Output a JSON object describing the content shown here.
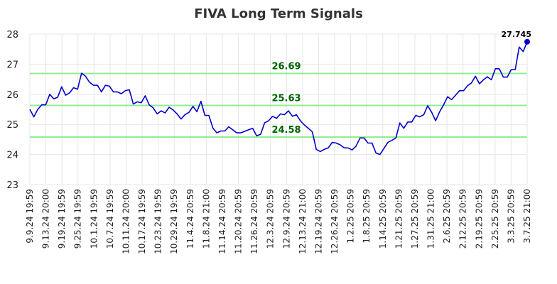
{
  "chart_data": {
    "type": "line",
    "title": "FIVA Long Term Signals",
    "xlabel": "",
    "ylabel": "",
    "ylim": [
      23,
      28
    ],
    "yticks": [
      "23",
      "24",
      "25",
      "26",
      "27",
      "28"
    ],
    "xticks": [
      "9.9.24 19:59",
      "9.13.24 20:00",
      "9.19.24 19:59",
      "9.25.24 19:59",
      "10.1.24 19:59",
      "10.7.24 19:59",
      "10.11.24 20:00",
      "10.17.24 19:59",
      "10.23.24 19:59",
      "10.29.24 19:59",
      "11.4.24 20:59",
      "11.8.24 21:00",
      "11.14.24 20:59",
      "11.20.24 20:59",
      "11.26.24 20:59",
      "12.3.24 20:59",
      "12.9.24 20:59",
      "12.13.24 21:00",
      "12.19.24 20:59",
      "12.26.24 20:59",
      "1.2.25 20:59",
      "1.8.25 20:59",
      "1.14.25 20:59",
      "1.21.25 20:59",
      "1.27.25 20:59",
      "1.31.25 21:00",
      "2.6.25 20:59",
      "2.12.25 20:59",
      "2.19.25 20:59",
      "2.25.25 20:59",
      "3.3.25 20:59",
      "3.7.25 21:00"
    ],
    "grid": true,
    "levels": [
      {
        "value": 26.69,
        "label": "26.69"
      },
      {
        "value": 25.63,
        "label": "25.63"
      },
      {
        "value": 24.58,
        "label": "24.58"
      }
    ],
    "series": [
      {
        "values": [
          25.5,
          25.25,
          25.5,
          25.65,
          25.65,
          26.0,
          25.85,
          25.9,
          26.25,
          25.97,
          26.05,
          26.22,
          26.17,
          26.7,
          26.6,
          26.4,
          26.3,
          26.3,
          26.08,
          26.3,
          26.27,
          26.08,
          26.08,
          26.02,
          26.12,
          26.15,
          25.68,
          25.75,
          25.72,
          25.95,
          25.65,
          25.55,
          25.35,
          25.45,
          25.38,
          25.57,
          25.48,
          25.35,
          25.18,
          25.32,
          25.4,
          25.6,
          25.42,
          25.77,
          25.3,
          25.3,
          24.88,
          24.72,
          24.78,
          24.78,
          24.92,
          24.82,
          24.72,
          24.72,
          24.77,
          24.82,
          24.87,
          24.62,
          24.67,
          25.05,
          25.12,
          25.27,
          25.2,
          25.35,
          25.32,
          25.45,
          25.27,
          25.32,
          25.12,
          24.98,
          24.87,
          24.75,
          24.17,
          24.1,
          24.17,
          24.22,
          24.4,
          24.38,
          24.32,
          24.22,
          24.22,
          24.15,
          24.28,
          24.55,
          24.55,
          24.38,
          24.38,
          24.05,
          24.0,
          24.2,
          24.4,
          24.47,
          24.55,
          25.05,
          24.87,
          25.08,
          25.08,
          25.3,
          25.25,
          25.32,
          25.62,
          25.4,
          25.12,
          25.42,
          25.65,
          25.92,
          25.82,
          25.97,
          26.12,
          26.12,
          26.28,
          26.38,
          26.6,
          26.35,
          26.48,
          26.58,
          26.48,
          26.85,
          26.85,
          26.57,
          26.57,
          26.82,
          26.82,
          27.57,
          27.42,
          27.745
        ]
      }
    ],
    "last_value_label": "27.745",
    "colors": {
      "line": "#0000cc",
      "level": "#90ee90",
      "grid": "#e6e6e6",
      "level_text": "#006400"
    }
  }
}
